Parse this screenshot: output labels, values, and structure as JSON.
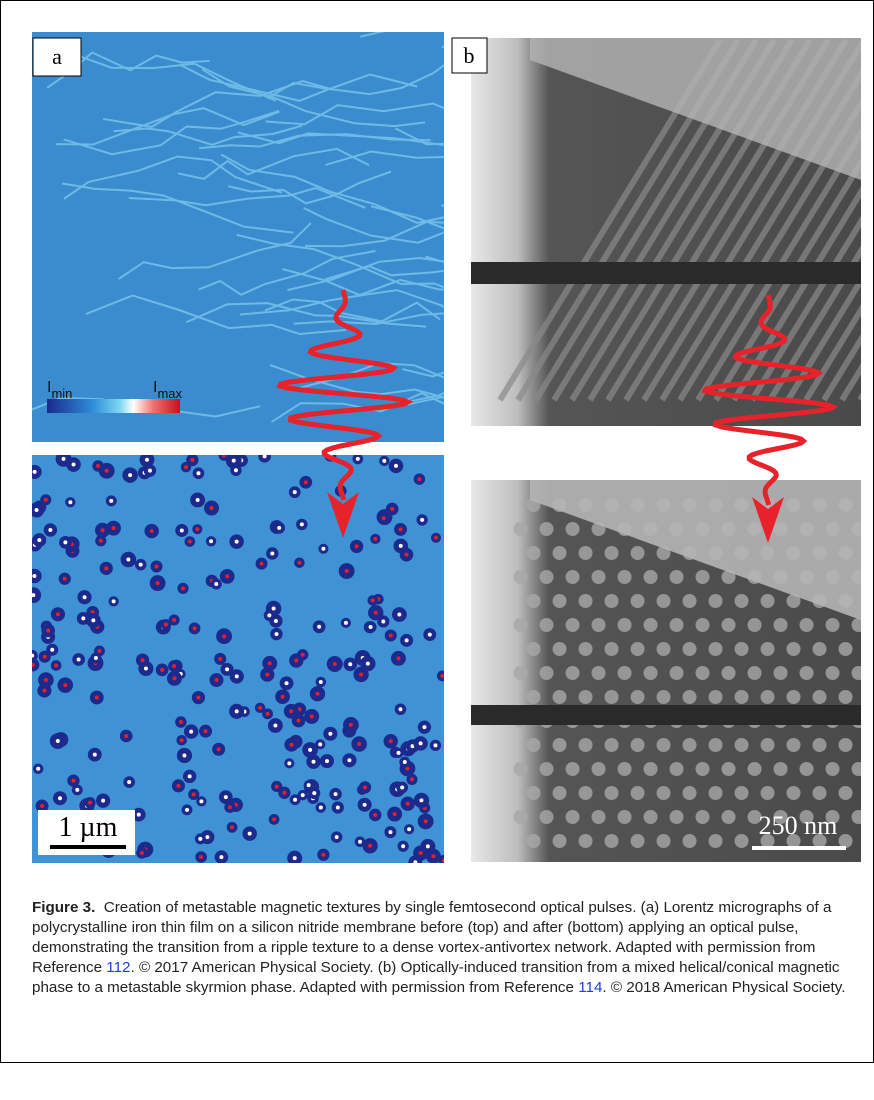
{
  "panels": [
    {
      "label": "a",
      "colorbar": {
        "min": {
          "symbol": "I",
          "sub": "min"
        },
        "max": {
          "symbol": "I",
          "sub": "max"
        }
      },
      "scale_bar": "1 µm"
    },
    {
      "label": "b",
      "scale_bar": "250 nm"
    }
  ],
  "caption": {
    "label": "Figure 3.",
    "parts": [
      "Creation of metastable magnetic textures by single femtosecond optical pulses. (a) Lorentz micrographs of a polycrystalline iron thin film on a silicon nitride membrane before (top) and after (bottom) applying an optical pulse, demonstrating the transition from a ripple texture to a dense vortex-antivortex network. Adapted with permission from Reference ",
      "112",
      ". © 2017 American Physical Society. (b) Optically-induced transition from a mixed helical/conical magnetic phase to a metastable skyrmion phase. Adapted with permission from Reference ",
      "114",
      ". © 2018 American Physical Society."
    ]
  }
}
